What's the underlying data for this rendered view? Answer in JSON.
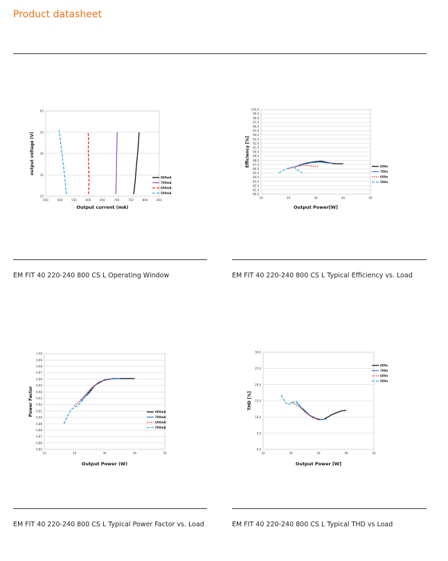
{
  "page": {
    "title": "Product datasheet"
  },
  "captions": [
    "EM FIT 40 220-240 800 CS L Operating Window",
    "EM FIT 40 220-240 800 CS L Typical Efficiency vs. Load",
    "EM FIT 40 220-240 800 CS L Typical Power Factor vs. Load",
    "EM FIT 40  220-240 800 CS L Typical THD vs Load"
  ],
  "chart_data": [
    {
      "type": "line",
      "xlabel": "Output current (mA)",
      "ylabel": "output voltage (V)",
      "xlim": [
        450,
        850
      ],
      "ylim": [
        25,
        65
      ],
      "xticks": [
        "450",
        "500",
        "550",
        "600",
        "650",
        "700",
        "750",
        "800",
        "850"
      ],
      "yticks": [
        "25",
        "35",
        "45",
        "55",
        "65"
      ],
      "grid": true,
      "legend_position": "right",
      "series": [
        {
          "name": "800mA",
          "color": "#111111",
          "dash": "solid",
          "points": [
            [
              760,
              26
            ],
            [
              765,
              32
            ],
            [
              770,
              40
            ],
            [
              775,
              47
            ],
            [
              779,
              55
            ]
          ]
        },
        {
          "name": "700mA",
          "color": "#9b59b6",
          "dash": "solid",
          "points": [
            [
              697,
              26
            ],
            [
              699,
              35
            ],
            [
              700,
              45
            ],
            [
              702,
              55
            ]
          ]
        },
        {
          "name": "600mA",
          "color": "#e02020",
          "dash": "dashed",
          "points": [
            [
              601,
              26
            ],
            [
              603,
              32
            ],
            [
              601,
              40
            ],
            [
              600,
              47
            ],
            [
              601,
              53
            ],
            [
              599,
              55
            ]
          ]
        },
        {
          "name": "500mA",
          "color": "#2aa9e0",
          "dash": "dashed",
          "points": [
            [
              523,
              26
            ],
            [
              518,
              33
            ],
            [
              510,
              42
            ],
            [
              501,
              52
            ],
            [
              497,
              56
            ]
          ]
        }
      ]
    },
    {
      "type": "line",
      "xlabel": "Output Power[W]",
      "ylabel": "Efficiency [%]",
      "xlim": [
        10,
        50
      ],
      "ylim": [
        80,
        100
      ],
      "xticks": [
        "10",
        "20",
        "30",
        "40",
        "50"
      ],
      "yticks": [
        "80.0",
        "81.0",
        "82.0",
        "83.0",
        "84.0",
        "85.0",
        "86.0",
        "87.0",
        "88.0",
        "89.0",
        "90.0",
        "91.0",
        "92.0",
        "93.0",
        "94.0",
        "95.0",
        "96.0",
        "97.0",
        "98.0",
        "99.0",
        "100.0"
      ],
      "grid": true,
      "legend_position": "right",
      "series": [
        {
          "name": "800mA",
          "color": "#111111",
          "dash": "solid",
          "points": [
            [
              24,
              86.9
            ],
            [
              27,
              87.4
            ],
            [
              30,
              87.7
            ],
            [
              32,
              87.8
            ],
            [
              35,
              87.4
            ],
            [
              37,
              87.2
            ],
            [
              40,
              87.2
            ]
          ]
        },
        {
          "name": "700mA",
          "color": "#3a7bd5",
          "dash": "solid",
          "points": [
            [
              22,
              86.4
            ],
            [
              25,
              87.0
            ],
            [
              28,
              87.4
            ],
            [
              31,
              87.6
            ],
            [
              34,
              87.4
            ],
            [
              36,
              87.3
            ]
          ]
        },
        {
          "name": "600mA",
          "color": "#e02020",
          "dash": "dotted",
          "points": [
            [
              20,
              86.0
            ],
            [
              22,
              86.4
            ],
            [
              25,
              86.8
            ],
            [
              27,
              86.8
            ],
            [
              29,
              86.6
            ],
            [
              31,
              86.5
            ]
          ]
        },
        {
          "name": "500mA",
          "color": "#2aa9e0",
          "dash": "dashed",
          "points": [
            [
              16.5,
              85.0
            ],
            [
              18,
              85.6
            ],
            [
              20,
              86.2
            ],
            [
              22,
              86.5
            ],
            [
              23,
              85.8
            ],
            [
              25,
              85.1
            ]
          ]
        }
      ]
    },
    {
      "type": "line",
      "xlabel": "Output Power (W)",
      "ylabel": "Power Factor",
      "xlim": [
        10,
        50
      ],
      "ylim": [
        0.85,
        1.0
      ],
      "xticks": [
        "10",
        "20",
        "30",
        "40",
        "50"
      ],
      "yticks": [
        "0.85",
        "0.86",
        "0.87",
        "0.88",
        "0.89",
        "0.90",
        "0.91",
        "0.92",
        "0.93",
        "0.94",
        "0.95",
        "0.96",
        "0.97",
        "0.98",
        "0.99",
        "1.00"
      ],
      "grid": true,
      "legend_position": "right",
      "series": [
        {
          "name": "800mA",
          "color": "#111111",
          "dash": "solid",
          "points": [
            [
              24,
              0.934
            ],
            [
              27,
              0.951
            ],
            [
              30,
              0.959
            ],
            [
              33,
              0.961
            ],
            [
              36,
              0.961
            ],
            [
              40,
              0.961
            ]
          ]
        },
        {
          "name": "700mA",
          "color": "#3a7bd5",
          "dash": "solid",
          "points": [
            [
              22,
              0.925
            ],
            [
              25,
              0.942
            ],
            [
              28,
              0.955
            ],
            [
              31,
              0.96
            ],
            [
              35,
              0.961
            ]
          ]
        },
        {
          "name": "600mA",
          "color": "#e02020",
          "dash": "dotted",
          "points": [
            [
              20,
              0.918
            ],
            [
              23,
              0.932
            ],
            [
              26,
              0.948
            ],
            [
              29,
              0.957
            ],
            [
              32,
              0.96
            ]
          ]
        },
        {
          "name": "500mA",
          "color": "#2aa9e0",
          "dash": "dashed",
          "points": [
            [
              16.5,
              0.89
            ],
            [
              18,
              0.905
            ],
            [
              19,
              0.913
            ],
            [
              21,
              0.918
            ],
            [
              23,
              0.929
            ],
            [
              25,
              0.941
            ]
          ]
        }
      ]
    },
    {
      "type": "line",
      "xlabel": "Output Power [W]",
      "ylabel": "THD [%]",
      "xlim": [
        10,
        50
      ],
      "ylim": [
        0,
        30
      ],
      "xticks": [
        "10",
        "20",
        "30",
        "40",
        "50"
      ],
      "yticks": [
        "0.0",
        "5.0",
        "10.0",
        "15.0",
        "20.0",
        "25.0",
        "30.0"
      ],
      "grid": true,
      "legend_position": "right",
      "series": [
        {
          "name": "800mA",
          "color": "#111111",
          "dash": "solid",
          "points": [
            [
              24,
              12.8
            ],
            [
              27,
              10.4
            ],
            [
              30,
              9.2
            ],
            [
              32,
              9.3
            ],
            [
              35,
              10.8
            ],
            [
              38,
              11.8
            ],
            [
              40,
              12.1
            ]
          ]
        },
        {
          "name": "700mA",
          "color": "#3a7bd5",
          "dash": "solid",
          "points": [
            [
              22,
              14.5
            ],
            [
              25,
              11.8
            ],
            [
              28,
              9.8
            ],
            [
              31,
              9.2
            ],
            [
              33,
              9.4
            ]
          ]
        },
        {
          "name": "600mA",
          "color": "#e02020",
          "dash": "dotted",
          "points": [
            [
              20,
              14.6
            ],
            [
              23,
              13.2
            ],
            [
              26,
              10.8
            ],
            [
              29,
              9.5
            ],
            [
              31,
              9.2
            ]
          ]
        },
        {
          "name": "500mA",
          "color": "#2aa9e0",
          "dash": "dashed",
          "points": [
            [
              16.5,
              16.8
            ],
            [
              18,
              14.5
            ],
            [
              19,
              13.8
            ],
            [
              21,
              14.6
            ],
            [
              22,
              14.8
            ],
            [
              24,
              12.8
            ]
          ]
        }
      ]
    }
  ]
}
